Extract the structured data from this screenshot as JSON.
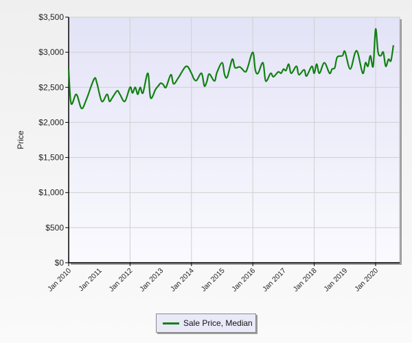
{
  "chart_data": {
    "type": "line",
    "title": "",
    "xlabel": "",
    "ylabel": "Price",
    "ylim": [
      0,
      3500
    ],
    "yticks": [
      0,
      500,
      1000,
      1500,
      2000,
      2500,
      3000,
      3500
    ],
    "ytick_labels": [
      "$0",
      "$500",
      "$1,000",
      "$1,500",
      "$2,000",
      "$2,500",
      "$3,000",
      "$3,500"
    ],
    "xtick_labels": [
      "Jan 2010",
      "Jan 2011",
      "Jan 2012",
      "Jan 2013",
      "Jan 2014",
      "Jan 2015",
      "Jan 2016",
      "Jan 2017",
      "Jan 2018",
      "Jan 2019",
      "Jan 2020"
    ],
    "grid": true,
    "legend_position": "bottom",
    "series": [
      {
        "name": "Sale Price, Median",
        "color": "#108010",
        "x_years": [
          2010.0,
          2010.08,
          2010.25,
          2010.42,
          2010.58,
          2010.83,
          2010.92,
          2011.08,
          2011.25,
          2011.33,
          2011.42,
          2011.58,
          2011.67,
          2011.83,
          2012.0,
          2012.08,
          2012.17,
          2012.25,
          2012.33,
          2012.42,
          2012.58,
          2012.67,
          2012.83,
          2012.92,
          2013.0,
          2013.08,
          2013.17,
          2013.33,
          2013.42,
          2013.58,
          2013.83,
          2014.0,
          2014.08,
          2014.17,
          2014.33,
          2014.42,
          2014.5,
          2014.58,
          2014.75,
          2014.83,
          2015.0,
          2015.08,
          2015.17,
          2015.33,
          2015.42,
          2015.58,
          2015.75,
          2015.83,
          2016.0,
          2016.08,
          2016.17,
          2016.33,
          2016.42,
          2016.58,
          2016.67,
          2016.83,
          2016.92,
          2017.0,
          2017.08,
          2017.17,
          2017.25,
          2017.42,
          2017.5,
          2017.67,
          2017.75,
          2017.92,
          2018.0,
          2018.08,
          2018.17,
          2018.33,
          2018.5,
          2018.58,
          2018.67,
          2018.75,
          2018.92,
          2019.0,
          2019.17,
          2019.33,
          2019.42,
          2019.58,
          2019.67,
          2019.75,
          2019.83,
          2019.92,
          2020.0,
          2020.08,
          2020.17,
          2020.25,
          2020.33,
          2020.42,
          2020.5,
          2020.58
        ],
        "values": [
          2750,
          2270,
          2400,
          2200,
          2330,
          2620,
          2560,
          2300,
          2400,
          2300,
          2350,
          2450,
          2400,
          2300,
          2500,
          2420,
          2500,
          2400,
          2500,
          2420,
          2700,
          2350,
          2470,
          2520,
          2560,
          2540,
          2500,
          2680,
          2550,
          2640,
          2800,
          2700,
          2620,
          2600,
          2700,
          2520,
          2580,
          2690,
          2590,
          2710,
          2850,
          2680,
          2650,
          2900,
          2780,
          2790,
          2720,
          2780,
          3000,
          2750,
          2700,
          2850,
          2590,
          2700,
          2650,
          2720,
          2700,
          2760,
          2740,
          2830,
          2700,
          2800,
          2680,
          2750,
          2660,
          2800,
          2700,
          2830,
          2700,
          2850,
          2700,
          2760,
          2780,
          2930,
          2950,
          3010,
          2760,
          2990,
          2990,
          2700,
          2850,
          2800,
          2950,
          2800,
          3330,
          3000,
          2950,
          3000,
          2800,
          2900,
          2880,
          3100
        ]
      }
    ]
  },
  "legend": {
    "label": "Sale Price, Median"
  },
  "axis": {
    "y_title": "Price"
  }
}
